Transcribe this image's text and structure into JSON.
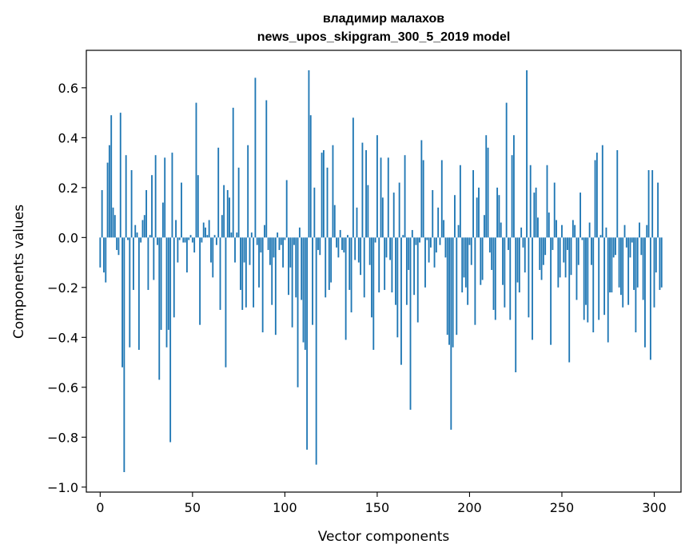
{
  "chart_data": {
    "type": "bar",
    "title": "владимир малахов",
    "subtitle": "news_upos_skipgram_300_5_2019 model",
    "xlabel": "Vector components",
    "ylabel": "Components values",
    "xlim": [
      -7.5,
      314.5
    ],
    "ylim": [
      -1.02,
      0.75
    ],
    "xticks": [
      0,
      50,
      100,
      150,
      200,
      250,
      300
    ],
    "yticks": [
      0.6,
      0.4,
      0.2,
      0.0,
      -0.2,
      -0.4,
      -0.6,
      -0.8,
      -1.0
    ],
    "ytick_labels": [
      "0.6",
      "0.4",
      "0.2",
      "0.0",
      "−0.2",
      "−0.4",
      "−0.6",
      "−0.8",
      "−1.0"
    ],
    "bar_color": "#1f77b4",
    "values": [
      -0.12,
      0.19,
      -0.14,
      -0.18,
      0.3,
      0.37,
      0.49,
      0.12,
      0.09,
      -0.05,
      -0.07,
      0.5,
      -0.52,
      -0.94,
      0.33,
      -0.01,
      -0.44,
      0.27,
      -0.21,
      0.05,
      0.02,
      -0.45,
      -0.02,
      0.07,
      0.09,
      0.19,
      -0.21,
      0.01,
      0.25,
      -0.17,
      0.33,
      -0.03,
      -0.57,
      -0.37,
      0.14,
      0.32,
      -0.44,
      -0.37,
      -0.82,
      0.34,
      -0.32,
      0.07,
      -0.1,
      -0.01,
      0.22,
      -0.02,
      -0.02,
      -0.14,
      -0.01,
      0.01,
      -0.02,
      -0.06,
      0.54,
      0.25,
      -0.35,
      -0.02,
      0.06,
      0.04,
      0.01,
      0.07,
      -0.1,
      -0.16,
      0.01,
      -0.03,
      0.36,
      -0.29,
      0.09,
      0.21,
      -0.52,
      0.19,
      0.16,
      0.02,
      0.52,
      -0.1,
      0.02,
      0.28,
      -0.21,
      -0.29,
      -0.1,
      -0.28,
      0.37,
      -0.11,
      0.02,
      -0.28,
      0.64,
      -0.03,
      -0.2,
      -0.06,
      -0.38,
      0.05,
      0.55,
      -0.05,
      -0.11,
      -0.27,
      -0.08,
      -0.39,
      0.02,
      -0.05,
      -0.03,
      -0.12,
      -0.01,
      0.23,
      -0.23,
      -0.12,
      -0.36,
      -0.03,
      -0.24,
      -0.6,
      0.04,
      -0.25,
      -0.42,
      -0.45,
      -0.85,
      0.67,
      0.49,
      -0.35,
      0.2,
      -0.91,
      -0.05,
      -0.07,
      0.34,
      0.35,
      -0.24,
      0.28,
      -0.21,
      -0.18,
      0.37,
      0.13,
      -0.04,
      -0.08,
      0.03,
      -0.05,
      -0.06,
      -0.41,
      0.01,
      -0.21,
      -0.3,
      0.48,
      -0.09,
      0.12,
      -0.1,
      -0.15,
      0.38,
      -0.24,
      0.35,
      0.21,
      -0.11,
      -0.32,
      -0.45,
      -0.02,
      0.41,
      -0.22,
      0.32,
      0.16,
      -0.21,
      -0.08,
      0.32,
      -0.09,
      -0.22,
      0.18,
      -0.27,
      -0.4,
      0.22,
      -0.51,
      0.01,
      0.33,
      -0.27,
      -0.13,
      -0.69,
      0.03,
      -0.23,
      -0.03,
      -0.34,
      -0.02,
      0.39,
      0.31,
      -0.2,
      -0.01,
      -0.1,
      -0.04,
      0.19,
      -0.12,
      -0.06,
      0.12,
      -0.03,
      0.31,
      0.07,
      -0.08,
      -0.39,
      -0.43,
      -0.77,
      -0.44,
      0.17,
      -0.39,
      0.05,
      0.29,
      -0.22,
      -0.16,
      -0.2,
      -0.27,
      -0.03,
      -0.11,
      0.27,
      -0.35,
      0.16,
      0.2,
      -0.19,
      -0.17,
      0.09,
      0.41,
      0.36,
      -0.06,
      -0.13,
      -0.29,
      -0.33,
      0.2,
      0.17,
      0.06,
      -0.19,
      -0.28,
      0.54,
      -0.05,
      -0.33,
      0.33,
      0.41,
      -0.54,
      -0.18,
      -0.22,
      0.04,
      -0.04,
      -0.14,
      0.67,
      -0.32,
      0.29,
      -0.41,
      0.18,
      0.2,
      0.08,
      -0.13,
      -0.17,
      -0.11,
      -0.07,
      0.29,
      0.1,
      -0.43,
      -0.05,
      0.22,
      0.07,
      -0.2,
      -0.16,
      0.05,
      -0.1,
      -0.16,
      -0.05,
      -0.5,
      -0.15,
      0.07,
      0.05,
      -0.25,
      -0.11,
      0.18,
      -0.01,
      -0.33,
      -0.27,
      -0.34,
      0.06,
      -0.11,
      -0.38,
      0.31,
      0.34,
      -0.33,
      0.01,
      0.37,
      -0.31,
      0.04,
      -0.42,
      -0.22,
      -0.22,
      -0.08,
      -0.07,
      0.35,
      -0.2,
      -0.23,
      -0.28,
      0.05,
      -0.04,
      -0.27,
      -0.08,
      -0.02,
      -0.21,
      -0.38,
      -0.2,
      0.06,
      -0.07,
      -0.25,
      -0.44,
      0.05,
      0.27,
      -0.49,
      0.27,
      -0.28,
      -0.14,
      0.22,
      -0.21,
      -0.2
    ]
  }
}
